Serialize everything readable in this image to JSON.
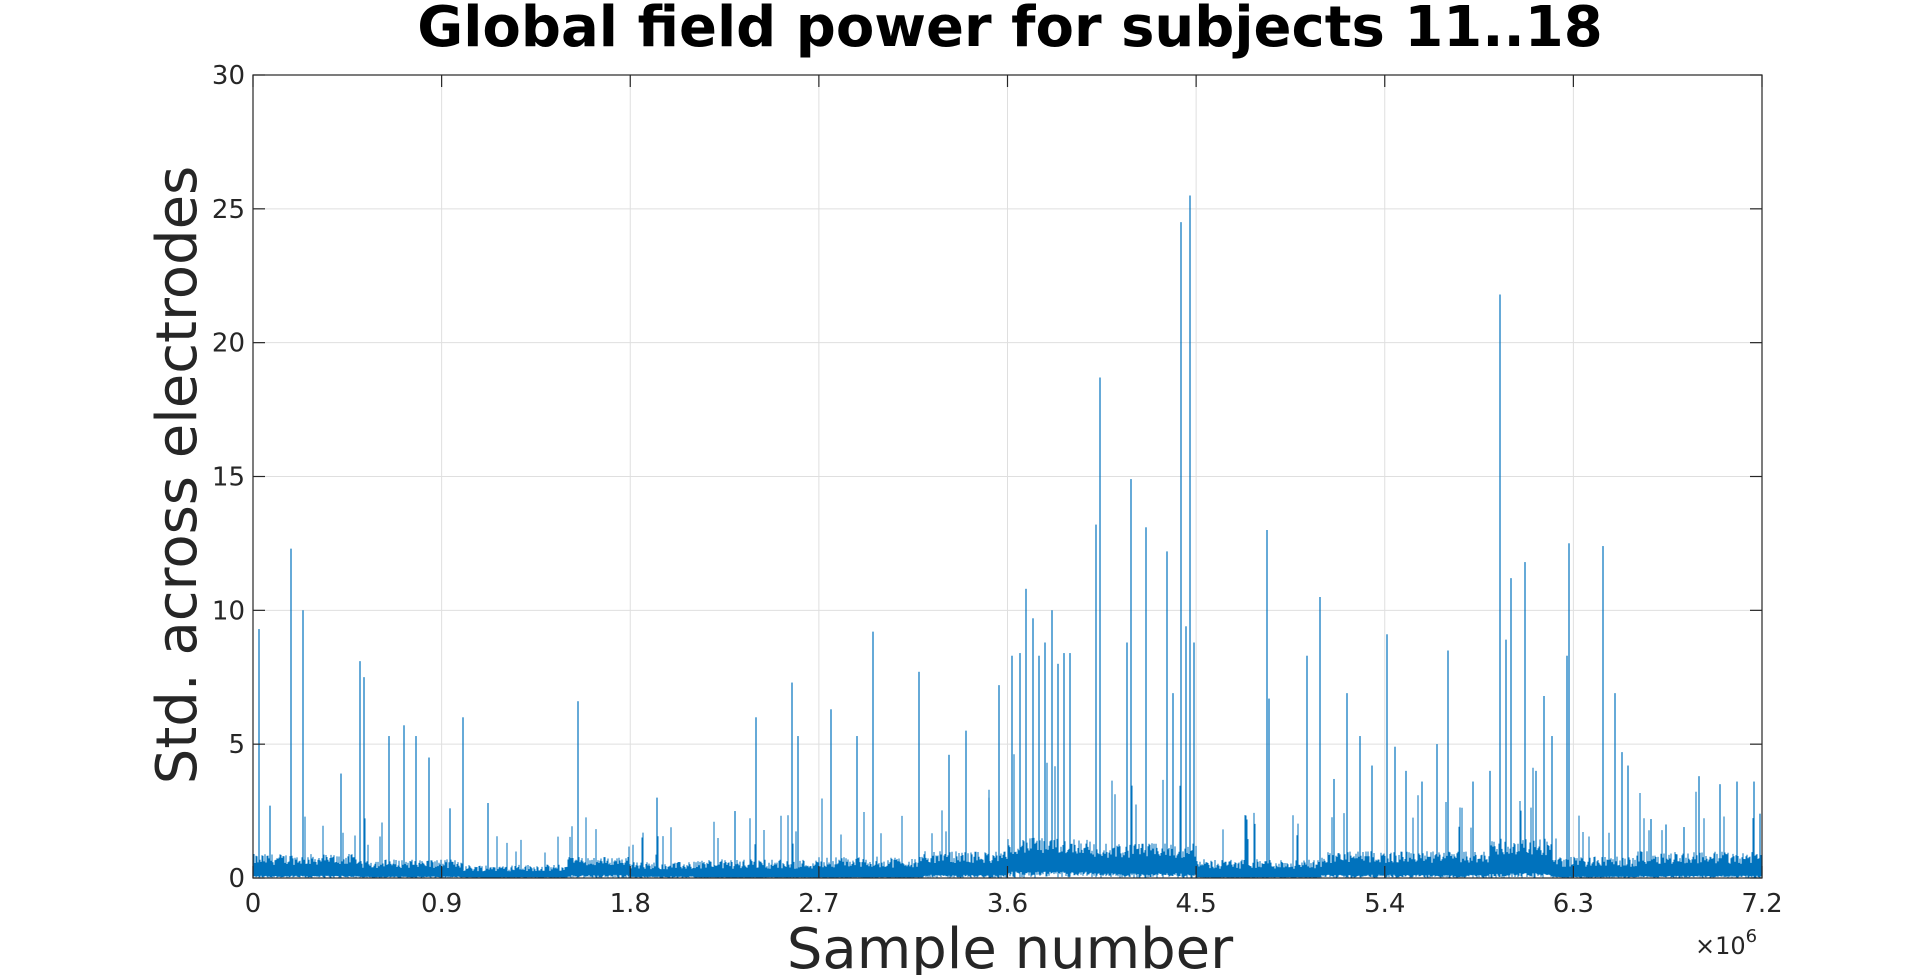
{
  "chart_data": {
    "type": "line",
    "title": "Global field power for subjects 11..18",
    "xlabel": "Sample number",
    "ylabel": "Std. across electrodes",
    "x_exponent_base": "×10",
    "x_exponent_power": "6",
    "xlim": [
      0,
      7.2
    ],
    "ylim": [
      0,
      30
    ],
    "xticks": [
      0,
      0.9,
      1.8,
      2.7,
      3.6,
      4.5,
      5.4,
      6.3,
      7.2
    ],
    "xtick_labels": [
      "0",
      "0.9",
      "1.8",
      "2.7",
      "3.6",
      "4.5",
      "5.4",
      "6.3",
      "7.2"
    ],
    "yticks": [
      0,
      5,
      10,
      15,
      20,
      25,
      30
    ],
    "ytick_labels": [
      "0",
      "5",
      "10",
      "15",
      "20",
      "25",
      "30"
    ],
    "grid": true,
    "line_color": "#0072BD",
    "baseline_segments": [
      {
        "x": [
          0.0,
          0.5
        ],
        "low": 0.15,
        "high": 0.9
      },
      {
        "x": [
          0.5,
          1.0
        ],
        "low": 0.1,
        "high": 0.7
      },
      {
        "x": [
          1.0,
          1.5
        ],
        "low": 0.05,
        "high": 0.5
      },
      {
        "x": [
          1.5,
          1.8
        ],
        "low": 0.2,
        "high": 0.8
      },
      {
        "x": [
          1.8,
          2.1
        ],
        "low": 0.1,
        "high": 0.6
      },
      {
        "x": [
          2.1,
          2.7
        ],
        "low": 0.05,
        "high": 0.7
      },
      {
        "x": [
          2.7,
          3.2
        ],
        "low": 0.05,
        "high": 0.8
      },
      {
        "x": [
          3.2,
          3.6
        ],
        "low": 0.2,
        "high": 1.0
      },
      {
        "x": [
          3.6,
          4.0
        ],
        "low": 0.4,
        "high": 1.5
      },
      {
        "x": [
          4.0,
          4.5
        ],
        "low": 0.3,
        "high": 1.3
      },
      {
        "x": [
          4.5,
          5.1
        ],
        "low": 0.05,
        "high": 0.7
      },
      {
        "x": [
          5.1,
          5.9
        ],
        "low": 0.2,
        "high": 1.0
      },
      {
        "x": [
          5.9,
          6.2
        ],
        "low": 0.3,
        "high": 1.5
      },
      {
        "x": [
          6.2,
          6.6
        ],
        "low": 0.1,
        "high": 0.8
      },
      {
        "x": [
          6.6,
          7.2
        ],
        "low": 0.15,
        "high": 1.0
      }
    ],
    "spikes": [
      {
        "x": 0.03,
        "y": 9.3
      },
      {
        "x": 0.08,
        "y": 2.7
      },
      {
        "x": 0.18,
        "y": 12.3
      },
      {
        "x": 0.24,
        "y": 10.0
      },
      {
        "x": 0.42,
        "y": 3.9
      },
      {
        "x": 0.51,
        "y": 8.1
      },
      {
        "x": 0.53,
        "y": 7.5
      },
      {
        "x": 0.65,
        "y": 5.3
      },
      {
        "x": 0.72,
        "y": 5.7
      },
      {
        "x": 0.78,
        "y": 5.3
      },
      {
        "x": 0.84,
        "y": 4.5
      },
      {
        "x": 0.94,
        "y": 2.6
      },
      {
        "x": 1.0,
        "y": 6.0
      },
      {
        "x": 1.12,
        "y": 2.8
      },
      {
        "x": 1.55,
        "y": 6.6
      },
      {
        "x": 1.93,
        "y": 3.0
      },
      {
        "x": 2.3,
        "y": 2.5
      },
      {
        "x": 2.4,
        "y": 6.0
      },
      {
        "x": 2.57,
        "y": 7.3
      },
      {
        "x": 2.6,
        "y": 5.3
      },
      {
        "x": 2.76,
        "y": 6.3
      },
      {
        "x": 2.88,
        "y": 5.3
      },
      {
        "x": 2.96,
        "y": 9.2
      },
      {
        "x": 3.18,
        "y": 7.7
      },
      {
        "x": 3.32,
        "y": 4.6
      },
      {
        "x": 3.4,
        "y": 5.5
      },
      {
        "x": 3.51,
        "y": 3.0
      },
      {
        "x": 3.56,
        "y": 7.2
      },
      {
        "x": 3.62,
        "y": 8.3
      },
      {
        "x": 3.66,
        "y": 8.4
      },
      {
        "x": 3.69,
        "y": 10.8
      },
      {
        "x": 3.72,
        "y": 9.7
      },
      {
        "x": 3.75,
        "y": 8.3
      },
      {
        "x": 3.78,
        "y": 8.8
      },
      {
        "x": 3.81,
        "y": 10.0
      },
      {
        "x": 3.84,
        "y": 8.0
      },
      {
        "x": 3.87,
        "y": 8.4
      },
      {
        "x": 3.9,
        "y": 8.4
      },
      {
        "x": 4.02,
        "y": 13.2
      },
      {
        "x": 4.04,
        "y": 18.7
      },
      {
        "x": 4.17,
        "y": 8.8
      },
      {
        "x": 4.19,
        "y": 14.9
      },
      {
        "x": 4.26,
        "y": 13.1
      },
      {
        "x": 4.36,
        "y": 12.2
      },
      {
        "x": 4.39,
        "y": 6.9
      },
      {
        "x": 4.43,
        "y": 24.5
      },
      {
        "x": 4.45,
        "y": 9.4
      },
      {
        "x": 4.47,
        "y": 25.5
      },
      {
        "x": 4.49,
        "y": 8.8
      },
      {
        "x": 4.84,
        "y": 13.0
      },
      {
        "x": 4.85,
        "y": 6.7
      },
      {
        "x": 5.03,
        "y": 8.3
      },
      {
        "x": 5.09,
        "y": 10.5
      },
      {
        "x": 5.16,
        "y": 3.7
      },
      {
        "x": 5.22,
        "y": 6.9
      },
      {
        "x": 5.28,
        "y": 5.3
      },
      {
        "x": 5.34,
        "y": 4.2
      },
      {
        "x": 5.41,
        "y": 9.1
      },
      {
        "x": 5.45,
        "y": 4.9
      },
      {
        "x": 5.5,
        "y": 4.0
      },
      {
        "x": 5.58,
        "y": 3.6
      },
      {
        "x": 5.65,
        "y": 5.0
      },
      {
        "x": 5.7,
        "y": 8.5
      },
      {
        "x": 5.82,
        "y": 3.6
      },
      {
        "x": 5.9,
        "y": 4.0
      },
      {
        "x": 5.95,
        "y": 21.8
      },
      {
        "x": 5.98,
        "y": 8.9
      },
      {
        "x": 6.0,
        "y": 11.2
      },
      {
        "x": 6.07,
        "y": 11.8
      },
      {
        "x": 6.12,
        "y": 4.0
      },
      {
        "x": 6.16,
        "y": 6.8
      },
      {
        "x": 6.2,
        "y": 5.3
      },
      {
        "x": 6.27,
        "y": 8.3
      },
      {
        "x": 6.28,
        "y": 12.5
      },
      {
        "x": 6.44,
        "y": 12.4
      },
      {
        "x": 6.5,
        "y": 6.9
      },
      {
        "x": 6.53,
        "y": 4.7
      },
      {
        "x": 6.56,
        "y": 4.2
      },
      {
        "x": 6.67,
        "y": 2.2
      },
      {
        "x": 6.74,
        "y": 2.0
      },
      {
        "x": 6.83,
        "y": 1.9
      },
      {
        "x": 6.9,
        "y": 3.8
      },
      {
        "x": 7.0,
        "y": 3.5
      },
      {
        "x": 7.08,
        "y": 3.6
      },
      {
        "x": 7.16,
        "y": 3.6
      },
      {
        "x": 7.19,
        "y": 2.4
      }
    ]
  }
}
